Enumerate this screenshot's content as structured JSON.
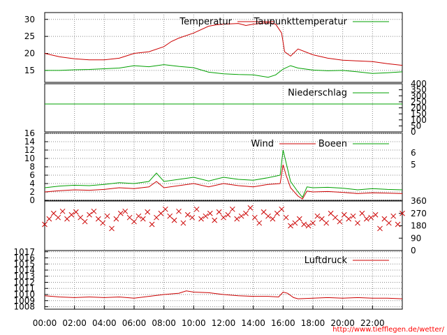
{
  "footer": {
    "url": "http://www.tiefflegen.de/wetter/"
  },
  "colors": {
    "red": "#cc0000",
    "green": "#00a000",
    "grid": "#888888",
    "url": "#ff0000"
  },
  "chart_data": {
    "type": "line",
    "x": {
      "ticks": [
        "00:00",
        "02:00",
        "04:00",
        "06:00",
        "08:00",
        "10:00",
        "12:00",
        "14:00",
        "16:00",
        "18:00",
        "20:00",
        "22:00"
      ],
      "range_hours": [
        0,
        24
      ]
    },
    "panels": [
      {
        "id": "temperature",
        "yrange": [
          11.5,
          32
        ],
        "yticks": [
          15,
          20,
          25,
          30
        ],
        "grid": true,
        "series": [
          {
            "name": "Temperatur",
            "color": "#cc0000",
            "hours": [
              0,
              1,
              2,
              3,
              4,
              5,
              5.5,
              6,
              7,
              8,
              8.5,
              9,
              10,
              11,
              11.5,
              12,
              13,
              13.5,
              14,
              15,
              15.5,
              15.9,
              16.1,
              16.5,
              17,
              18,
              19,
              20,
              21,
              22,
              23,
              24
            ],
            "values": [
              20,
              19,
              18.4,
              18.1,
              18.1,
              18.6,
              19.3,
              20,
              20.5,
              22,
              23.5,
              24.5,
              26,
              28,
              28.4,
              28.6,
              28.8,
              28.2,
              28.6,
              29,
              28.6,
              26,
              20.5,
              19.2,
              21.3,
              19.6,
              18.6,
              18,
              17.8,
              17.6,
              17,
              16.5
            ]
          },
          {
            "name": "Taupunkttemperatur",
            "color": "#00a000",
            "hours": [
              0,
              1,
              2,
              3,
              4,
              5,
              6,
              7,
              8,
              9,
              10,
              11,
              12,
              13,
              14,
              15,
              15.5,
              16,
              16.5,
              17,
              18,
              19,
              20,
              21,
              22,
              23,
              24
            ],
            "values": [
              15,
              15,
              15.2,
              15.3,
              15.5,
              15.7,
              16.4,
              16.1,
              16.7,
              16.2,
              15.8,
              14.5,
              14,
              13.8,
              13.7,
              13,
              13.7,
              15.4,
              16.4,
              15.7,
              15.1,
              14.9,
              15,
              14.6,
              14.1,
              14.3,
              14.6
            ]
          }
        ]
      },
      {
        "id": "precipitation",
        "yrange": [
          0,
          400
        ],
        "yticks_right": [
          0,
          50,
          100,
          150,
          200,
          250,
          300,
          350,
          400
        ],
        "series": [
          {
            "name": "Niederschlag",
            "color": "#00a000",
            "hours": [
              0,
              24
            ],
            "values": [
              232,
              232
            ]
          }
        ]
      },
      {
        "id": "wind",
        "yrange": [
          0,
          16
        ],
        "yticks": [
          0,
          2,
          4,
          6,
          8,
          10,
          12,
          14,
          16
        ],
        "yticks_right_labels": [
          "5",
          "6"
        ],
        "grid": true,
        "series": [
          {
            "name": "Wind",
            "color": "#cc0000",
            "hours": [
              0,
              1,
              2,
              3,
              4,
              5,
              6,
              7,
              7.5,
              8,
              9,
              10,
              11,
              12,
              13,
              14,
              15,
              15.8,
              16,
              16.2,
              16.5,
              17,
              17.3,
              17.6,
              18,
              19,
              20,
              21,
              22,
              23,
              24
            ],
            "values": [
              2,
              2.3,
              2.5,
              2.4,
              2.6,
              3,
              2.8,
              3.2,
              4.5,
              3,
              3.5,
              4,
              3.2,
              4,
              3.5,
              3.2,
              3.8,
              4,
              8.5,
              6,
              3,
              1,
              0.3,
              2.2,
              2,
              2.1,
              1.9,
              1.6,
              1.8,
              1.7,
              1.6
            ]
          },
          {
            "name": "Boeen",
            "color": "#00a000",
            "hours": [
              0,
              1,
              2,
              3,
              4,
              5,
              6,
              7,
              7.5,
              8,
              9,
              10,
              11,
              12,
              13,
              14,
              15,
              15.8,
              16,
              16.2,
              16.5,
              17,
              17.3,
              17.6,
              18,
              19,
              20,
              21,
              22,
              23,
              24
            ],
            "values": [
              3,
              3.4,
              3.6,
              3.5,
              3.8,
              4.2,
              4,
              4.5,
              6.5,
              4.5,
              5,
              5.5,
              4.6,
              5.5,
              5,
              4.8,
              5.4,
              6,
              12,
              9,
              4.5,
              2,
              0.7,
              3.2,
              3,
              3.1,
              2.9,
              2.5,
              2.8,
              2.6,
              2.5
            ]
          }
        ]
      },
      {
        "id": "wind_direction",
        "type": "scatter",
        "yrange": [
          0,
          360
        ],
        "yticks_right": [
          0,
          90,
          180,
          270,
          360
        ],
        "color": "#cc0000",
        "hours": [
          0,
          0.3,
          0.6,
          0.9,
          1.2,
          1.5,
          1.8,
          2.1,
          2.4,
          2.7,
          3,
          3.3,
          3.6,
          3.9,
          4.2,
          4.5,
          4.8,
          5.1,
          5.4,
          5.7,
          6,
          6.3,
          6.6,
          6.9,
          7.2,
          7.5,
          7.8,
          8.1,
          8.4,
          8.7,
          9,
          9.3,
          9.6,
          9.9,
          10.2,
          10.5,
          10.8,
          11.1,
          11.4,
          11.7,
          12,
          12.3,
          12.6,
          12.9,
          13.2,
          13.5,
          13.8,
          14.1,
          14.4,
          14.7,
          15,
          15.3,
          15.6,
          15.9,
          16.2,
          16.5,
          16.8,
          17.1,
          17.4,
          17.7,
          18,
          18.3,
          18.6,
          18.9,
          19.2,
          19.5,
          19.8,
          20.1,
          20.4,
          20.7,
          21,
          21.3,
          21.6,
          21.9,
          22.2,
          22.5,
          22.8,
          23.1,
          23.4,
          23.7,
          24
        ],
        "values": [
          190,
          230,
          270,
          240,
          285,
          230,
          260,
          280,
          240,
          210,
          260,
          285,
          230,
          200,
          250,
          160,
          230,
          270,
          285,
          240,
          210,
          250,
          230,
          280,
          190,
          240,
          270,
          300,
          250,
          220,
          285,
          200,
          260,
          240,
          300,
          230,
          250,
          270,
          220,
          280,
          240,
          260,
          300,
          230,
          250,
          270,
          310,
          240,
          200,
          280,
          250,
          230,
          270,
          300,
          240,
          180,
          200,
          230,
          190,
          180,
          200,
          250,
          230,
          200,
          270,
          240,
          210,
          260,
          230,
          250,
          200,
          270,
          230,
          240,
          260,
          160,
          230,
          200,
          250,
          190,
          270
        ]
      },
      {
        "id": "pressure",
        "yrange": [
          1007.6,
          1017.2
        ],
        "yticks": [
          1008,
          1009,
          1010,
          1011,
          1012,
          1013,
          1014,
          1015,
          1016,
          1017
        ],
        "grid": true,
        "series": [
          {
            "name": "Luftdruck",
            "color": "#cc0000",
            "hours": [
              0,
              1,
              2,
              3,
              4,
              5,
              6,
              7,
              8,
              9,
              9.5,
              10,
              11,
              12,
              13,
              14,
              15,
              15.7,
              16,
              16.3,
              16.7,
              17,
              18,
              19,
              20,
              21,
              22,
              23,
              24
            ],
            "values": [
              1009.8,
              1009.6,
              1009.5,
              1009.6,
              1009.5,
              1009.6,
              1009.4,
              1009.7,
              1010,
              1010.2,
              1010.6,
              1010.4,
              1010.3,
              1010,
              1009.8,
              1009.7,
              1009.7,
              1009.6,
              1010.4,
              1010.2,
              1009.5,
              1009.3,
              1009.4,
              1009.5,
              1009.4,
              1009.5,
              1009.4,
              1009.4,
              1009.3
            ]
          }
        ]
      }
    ]
  }
}
